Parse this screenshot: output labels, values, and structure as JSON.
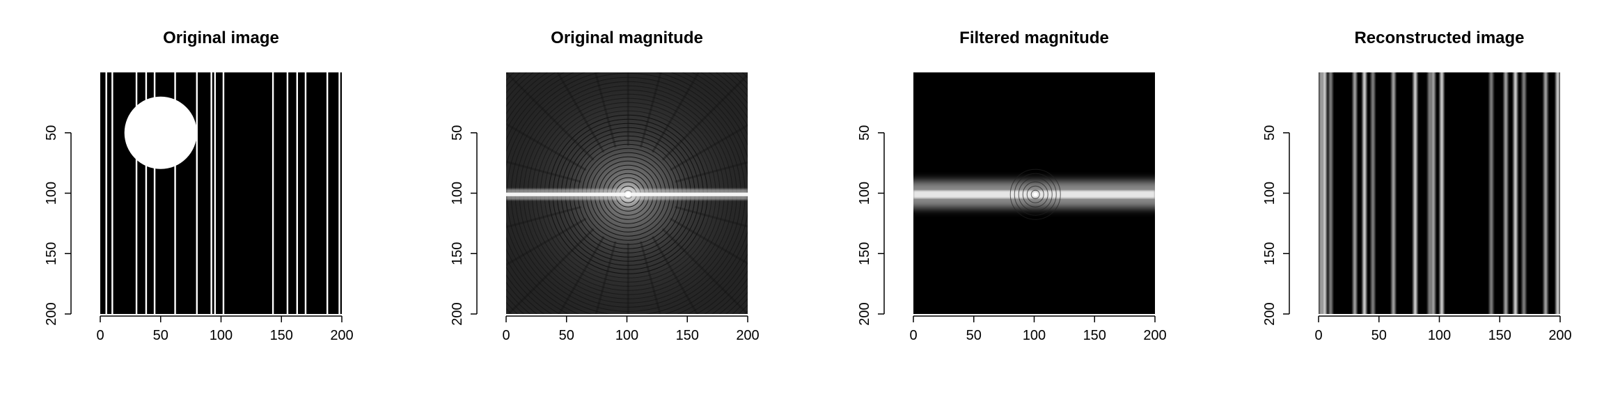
{
  "chart_data": [
    {
      "type": "heatmap",
      "title": "Original image",
      "xlabel": "",
      "ylabel": "",
      "xlim": [
        0,
        200
      ],
      "ylim": [
        200,
        0
      ],
      "xticks": [
        0,
        50,
        100,
        150,
        200
      ],
      "yticks": [
        50,
        100,
        150,
        200
      ],
      "content": "binary",
      "circle": {
        "cx": 50,
        "cy": 50,
        "r": 30
      },
      "vertical_lines_x": [
        5,
        10,
        30,
        38,
        45,
        62,
        80,
        92,
        95,
        102,
        143,
        155,
        163,
        170,
        188,
        198
      ]
    },
    {
      "type": "heatmap",
      "title": "Original magnitude",
      "xlabel": "",
      "ylabel": "",
      "xlim": [
        0,
        200
      ],
      "ylim": [
        200,
        0
      ],
      "xticks": [
        0,
        50,
        100,
        150,
        200
      ],
      "yticks": [
        50,
        100,
        150,
        200
      ],
      "content": "spectrum",
      "center": [
        101,
        101
      ],
      "horizontal_band_y": 101,
      "band_halfwidth": 1.5
    },
    {
      "type": "heatmap",
      "title": "Filtered magnitude",
      "xlabel": "",
      "ylabel": "",
      "xlim": [
        0,
        200
      ],
      "ylim": [
        200,
        0
      ],
      "xticks": [
        0,
        50,
        100,
        150,
        200
      ],
      "yticks": [
        50,
        100,
        150,
        200
      ],
      "content": "filtered",
      "center": [
        101,
        101
      ],
      "horizontal_band_y": 101,
      "band_halfwidth": 7
    },
    {
      "type": "heatmap",
      "title": "Reconstructed image",
      "xlabel": "",
      "ylabel": "",
      "xlim": [
        0,
        200
      ],
      "ylim": [
        200,
        0
      ],
      "xticks": [
        0,
        50,
        100,
        150,
        200
      ],
      "yticks": [
        50,
        100,
        150,
        200
      ],
      "content": "reconstructed",
      "vertical_lines_x": [
        2,
        5,
        10,
        30,
        38,
        45,
        62,
        80,
        92,
        95,
        102,
        143,
        155,
        163,
        170,
        188,
        198
      ]
    }
  ]
}
